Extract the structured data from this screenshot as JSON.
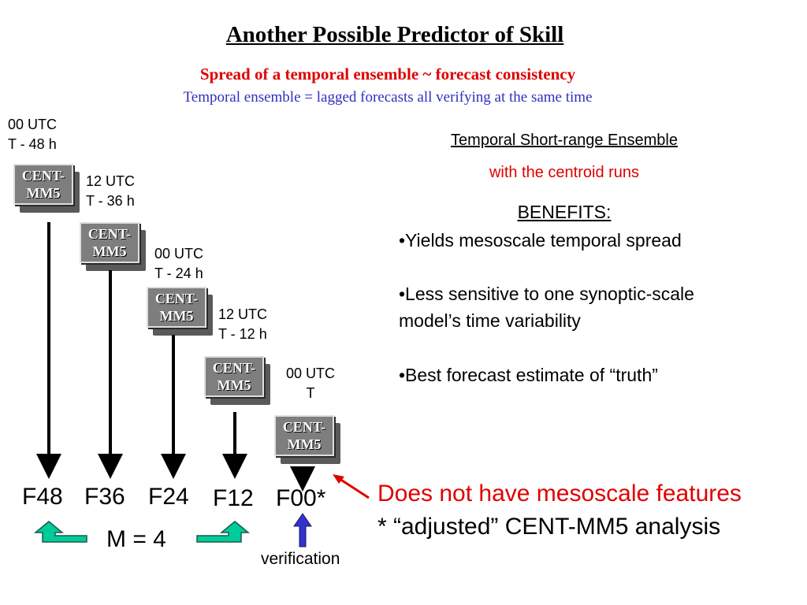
{
  "title": "Another Possible Predictor of Skill",
  "subtitle_red": "Spread of a temporal ensemble ~ forecast consistency",
  "subtitle_blue": "Temporal ensemble = lagged forecasts all verifying at the same time",
  "box_label": {
    "line1": "CENT-",
    "line2": "MM5"
  },
  "runs": [
    {
      "utc": "00 UTC",
      "lag": "T - 48 h",
      "forecast": "F48"
    },
    {
      "utc": "12 UTC",
      "lag": "T - 36 h",
      "forecast": "F36"
    },
    {
      "utc": "00 UTC",
      "lag": "T - 24 h",
      "forecast": "F24"
    },
    {
      "utc": "12 UTC",
      "lag": "T - 12 h",
      "forecast": "F12"
    },
    {
      "utc": "00 UTC",
      "lag": "T",
      "forecast": "F00*"
    }
  ],
  "m_label": "M = 4",
  "verification_label": "verification",
  "right_panel": {
    "heading": "Temporal Short-range Ensemble",
    "subheading": "with the centroid runs",
    "benefits_title": "BENEFITS:",
    "bullets": [
      "•Yields mesoscale temporal spread",
      "•Less sensitive to one synoptic-scale",
      "model’s time variability",
      "•Best forecast estimate of “truth”"
    ]
  },
  "note": {
    "line1": "Does not have mesoscale features",
    "line2": "* “adjusted” CENT-MM5 analysis"
  },
  "colors": {
    "title_red": "#e00000",
    "subtitle_blue": "#2f2fbf",
    "teal_arrow": "#00cc99",
    "blue_arrow": "#3333cc",
    "box_gray": "#7e7e7e"
  }
}
